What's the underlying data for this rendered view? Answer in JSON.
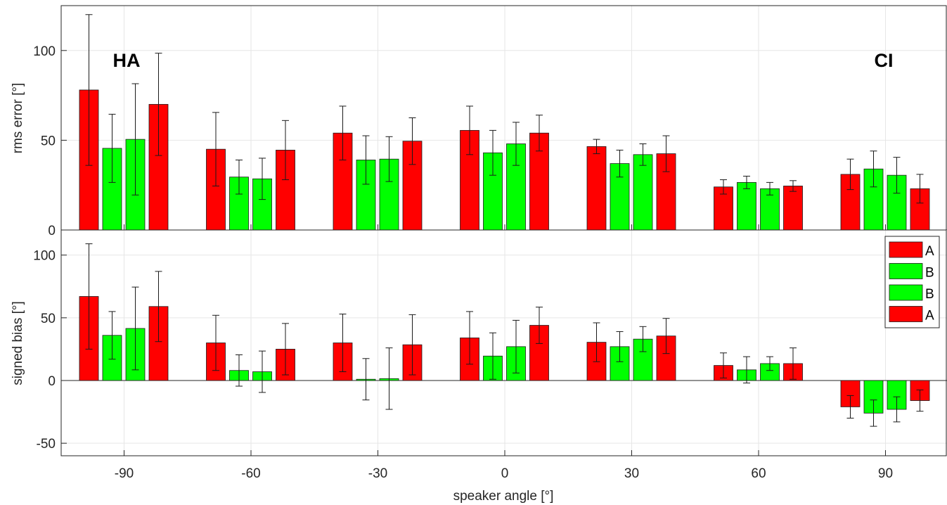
{
  "chart_data": {
    "type": "bar",
    "categories": [
      "-90",
      "-60",
      "-30",
      "0",
      "30",
      "60",
      "90"
    ],
    "xlabel": "speaker angle [°]",
    "legend": {
      "placement": "right",
      "entries": [
        {
          "name": "A",
          "color": "#ff0000"
        },
        {
          "name": "B",
          "color": "#00ff00"
        },
        {
          "name": "B",
          "color": "#00ff00"
        },
        {
          "name": "A",
          "color": "#ff0000"
        }
      ]
    },
    "grid": true,
    "panels": [
      {
        "ylabel": "rms error [°]",
        "ylim": [
          0,
          125
        ],
        "yticks": [
          "0",
          "50",
          "100"
        ],
        "annotations": [
          "HA",
          "CI"
        ],
        "series": [
          {
            "name": "A",
            "color": "#ff0000",
            "values": [
              78,
              45,
              54,
              55.5,
              46.5,
              24,
              31
            ],
            "errors": [
              42,
              20.5,
              15,
              13.5,
              4,
              4,
              8.5
            ]
          },
          {
            "name": "B",
            "color": "#00ff00",
            "values": [
              45.5,
              29.5,
              39,
              43,
              37,
              26.5,
              34
            ],
            "errors": [
              19,
              9.5,
              13.5,
              12.5,
              7.5,
              3.5,
              10
            ]
          },
          {
            "name": "B",
            "color": "#00ff00",
            "values": [
              50.5,
              28.5,
              39.5,
              48,
              42,
              23,
              30.5
            ],
            "errors": [
              31,
              11.5,
              12.5,
              12,
              6,
              3.5,
              10
            ]
          },
          {
            "name": "A",
            "color": "#ff0000",
            "values": [
              70,
              44.5,
              49.5,
              54,
              42.5,
              24.5,
              23
            ],
            "errors": [
              28.5,
              16.5,
              13,
              10,
              10,
              3,
              8
            ]
          }
        ]
      },
      {
        "ylabel": "signed bias [°]",
        "ylim": [
          -60,
          120
        ],
        "yticks": [
          "-50",
          "0",
          "50",
          "100"
        ],
        "series": [
          {
            "name": "A",
            "color": "#ff0000",
            "values": [
              67,
              30,
              30,
              34,
              30.5,
              12,
              -21
            ],
            "errors": [
              42,
              22,
              23,
              21,
              15.5,
              10,
              9
            ]
          },
          {
            "name": "B",
            "color": "#00ff00",
            "values": [
              36,
              8,
              1,
              19.5,
              27,
              8.5,
              -26
            ],
            "errors": [
              19,
              12.5,
              16.5,
              18.5,
              12,
              10.5,
              10.5
            ]
          },
          {
            "name": "B",
            "color": "#00ff00",
            "values": [
              41.5,
              7,
              1.5,
              27,
              33,
              13.5,
              -23
            ],
            "errors": [
              33,
              16.5,
              24.5,
              21,
              10,
              5.5,
              10
            ]
          },
          {
            "name": "A",
            "color": "#ff0000",
            "values": [
              59,
              25,
              28.5,
              44,
              35.5,
              13.5,
              -16
            ],
            "errors": [
              28,
              20.5,
              24,
              14.5,
              14,
              12.5,
              8.5
            ]
          }
        ]
      }
    ]
  }
}
